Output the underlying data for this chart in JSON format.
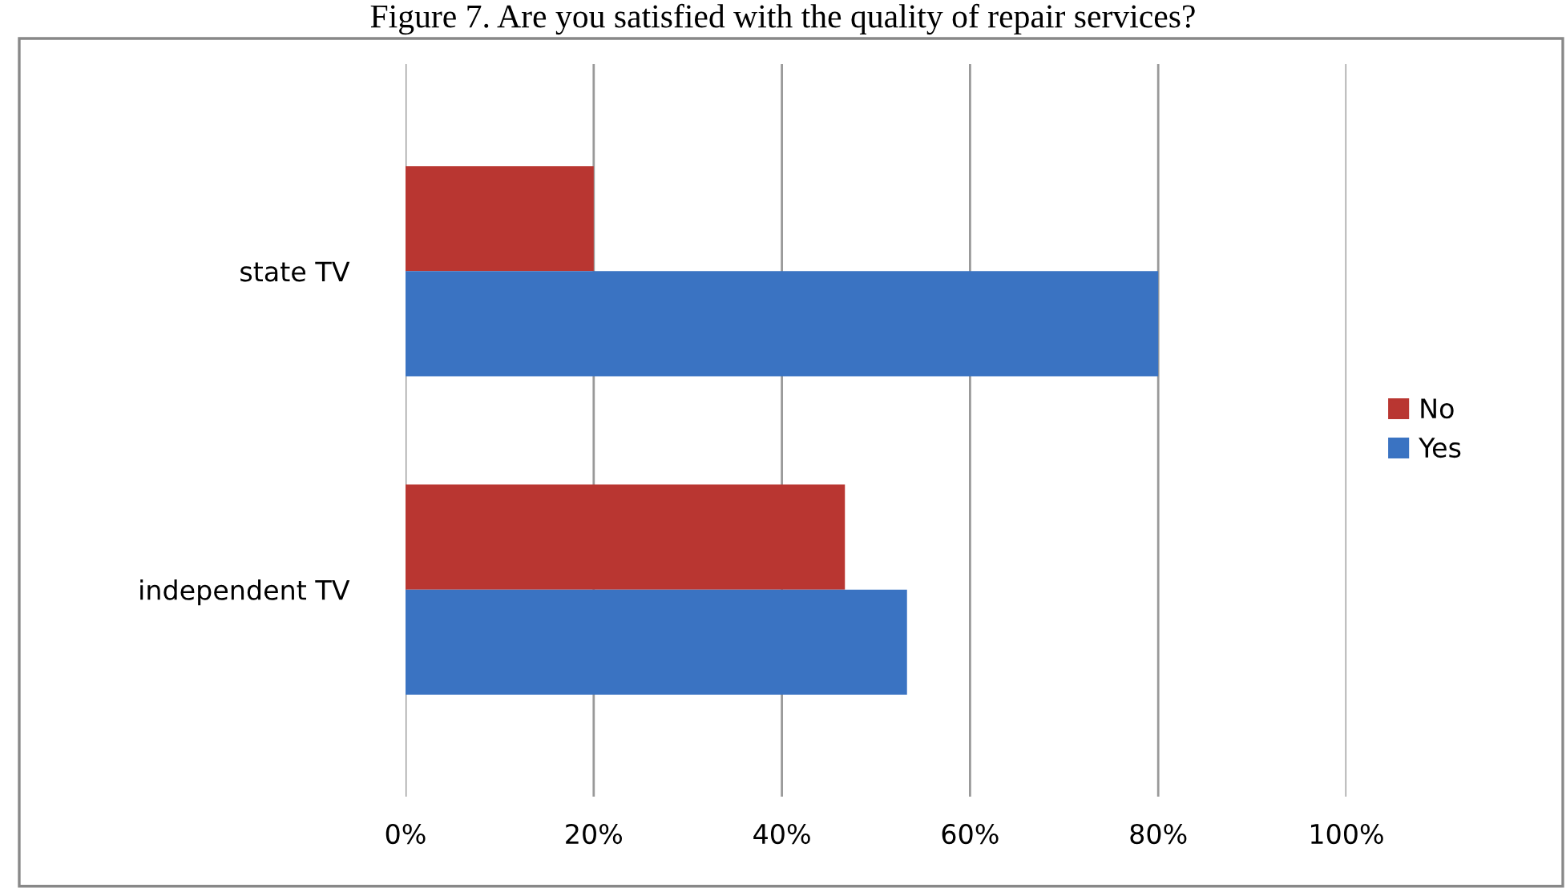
{
  "chart_data": {
    "type": "bar",
    "orientation": "horizontal",
    "title": "Figure 7. Are you satisfied with the quality of repair services?",
    "categories": [
      "state TV",
      "independent TV"
    ],
    "series": [
      {
        "name": "No",
        "color": "#b93631",
        "values": [
          20,
          46.7
        ]
      },
      {
        "name": "Yes",
        "color": "#3a73c2",
        "values": [
          80,
          53.3
        ]
      }
    ],
    "xlim": [
      0,
      100
    ],
    "xticks": [
      {
        "value": 0,
        "label": "0%"
      },
      {
        "value": 20,
        "label": "20%"
      },
      {
        "value": 40,
        "label": "40%"
      },
      {
        "value": 60,
        "label": "60%"
      },
      {
        "value": 80,
        "label": "80%"
      },
      {
        "value": 100,
        "label": "100%"
      }
    ],
    "grid": "x",
    "legend": "right"
  }
}
